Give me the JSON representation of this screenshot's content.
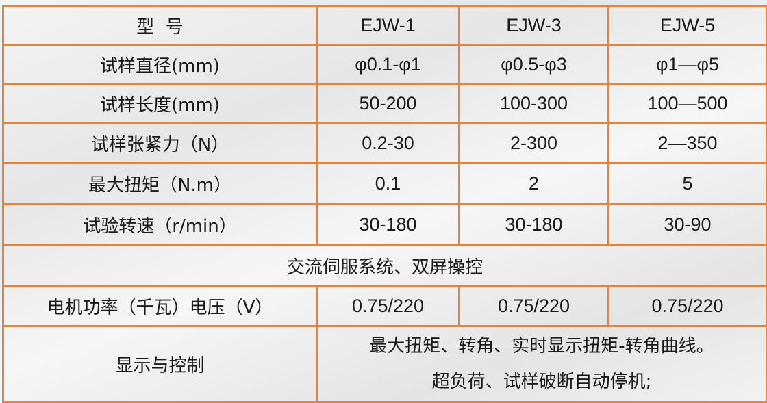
{
  "colors": {
    "border": "#e8823a",
    "text": "#1a1a1a"
  },
  "table": {
    "header": {
      "label": "型  号",
      "models": [
        "EJW-1",
        "EJW-3",
        "EJW-5"
      ]
    },
    "rows": [
      {
        "label": "试样直径(mm)",
        "values": [
          "φ0.1-φ1",
          "φ0.5-φ3",
          "φ1—φ5"
        ]
      },
      {
        "label": "试样长度(mm)",
        "values": [
          "50-200",
          "100-300",
          "100—500"
        ]
      },
      {
        "label": "试样张紧力（N）",
        "values": [
          "0.2-30",
          "2-300",
          "2—350"
        ]
      },
      {
        "label": "最大扭矩（N.m）",
        "values": [
          "0.1",
          "2",
          "5"
        ]
      },
      {
        "label": "试验转速（r/min）",
        "values": [
          "30-180",
          "30-180",
          "30-90"
        ]
      }
    ],
    "system_row": "交流伺服系统、双屏操控",
    "power_row": {
      "label": "电机功率（千瓦）电压（V）",
      "values": [
        "0.75/220",
        "0.75/220",
        "0.75/220"
      ]
    },
    "display_row": {
      "label": "显示与控制",
      "lines": [
        "最大扭矩、转角、实时显示扭矩-转角曲线。",
        "超负荷、试样破断自动停机;"
      ]
    }
  }
}
